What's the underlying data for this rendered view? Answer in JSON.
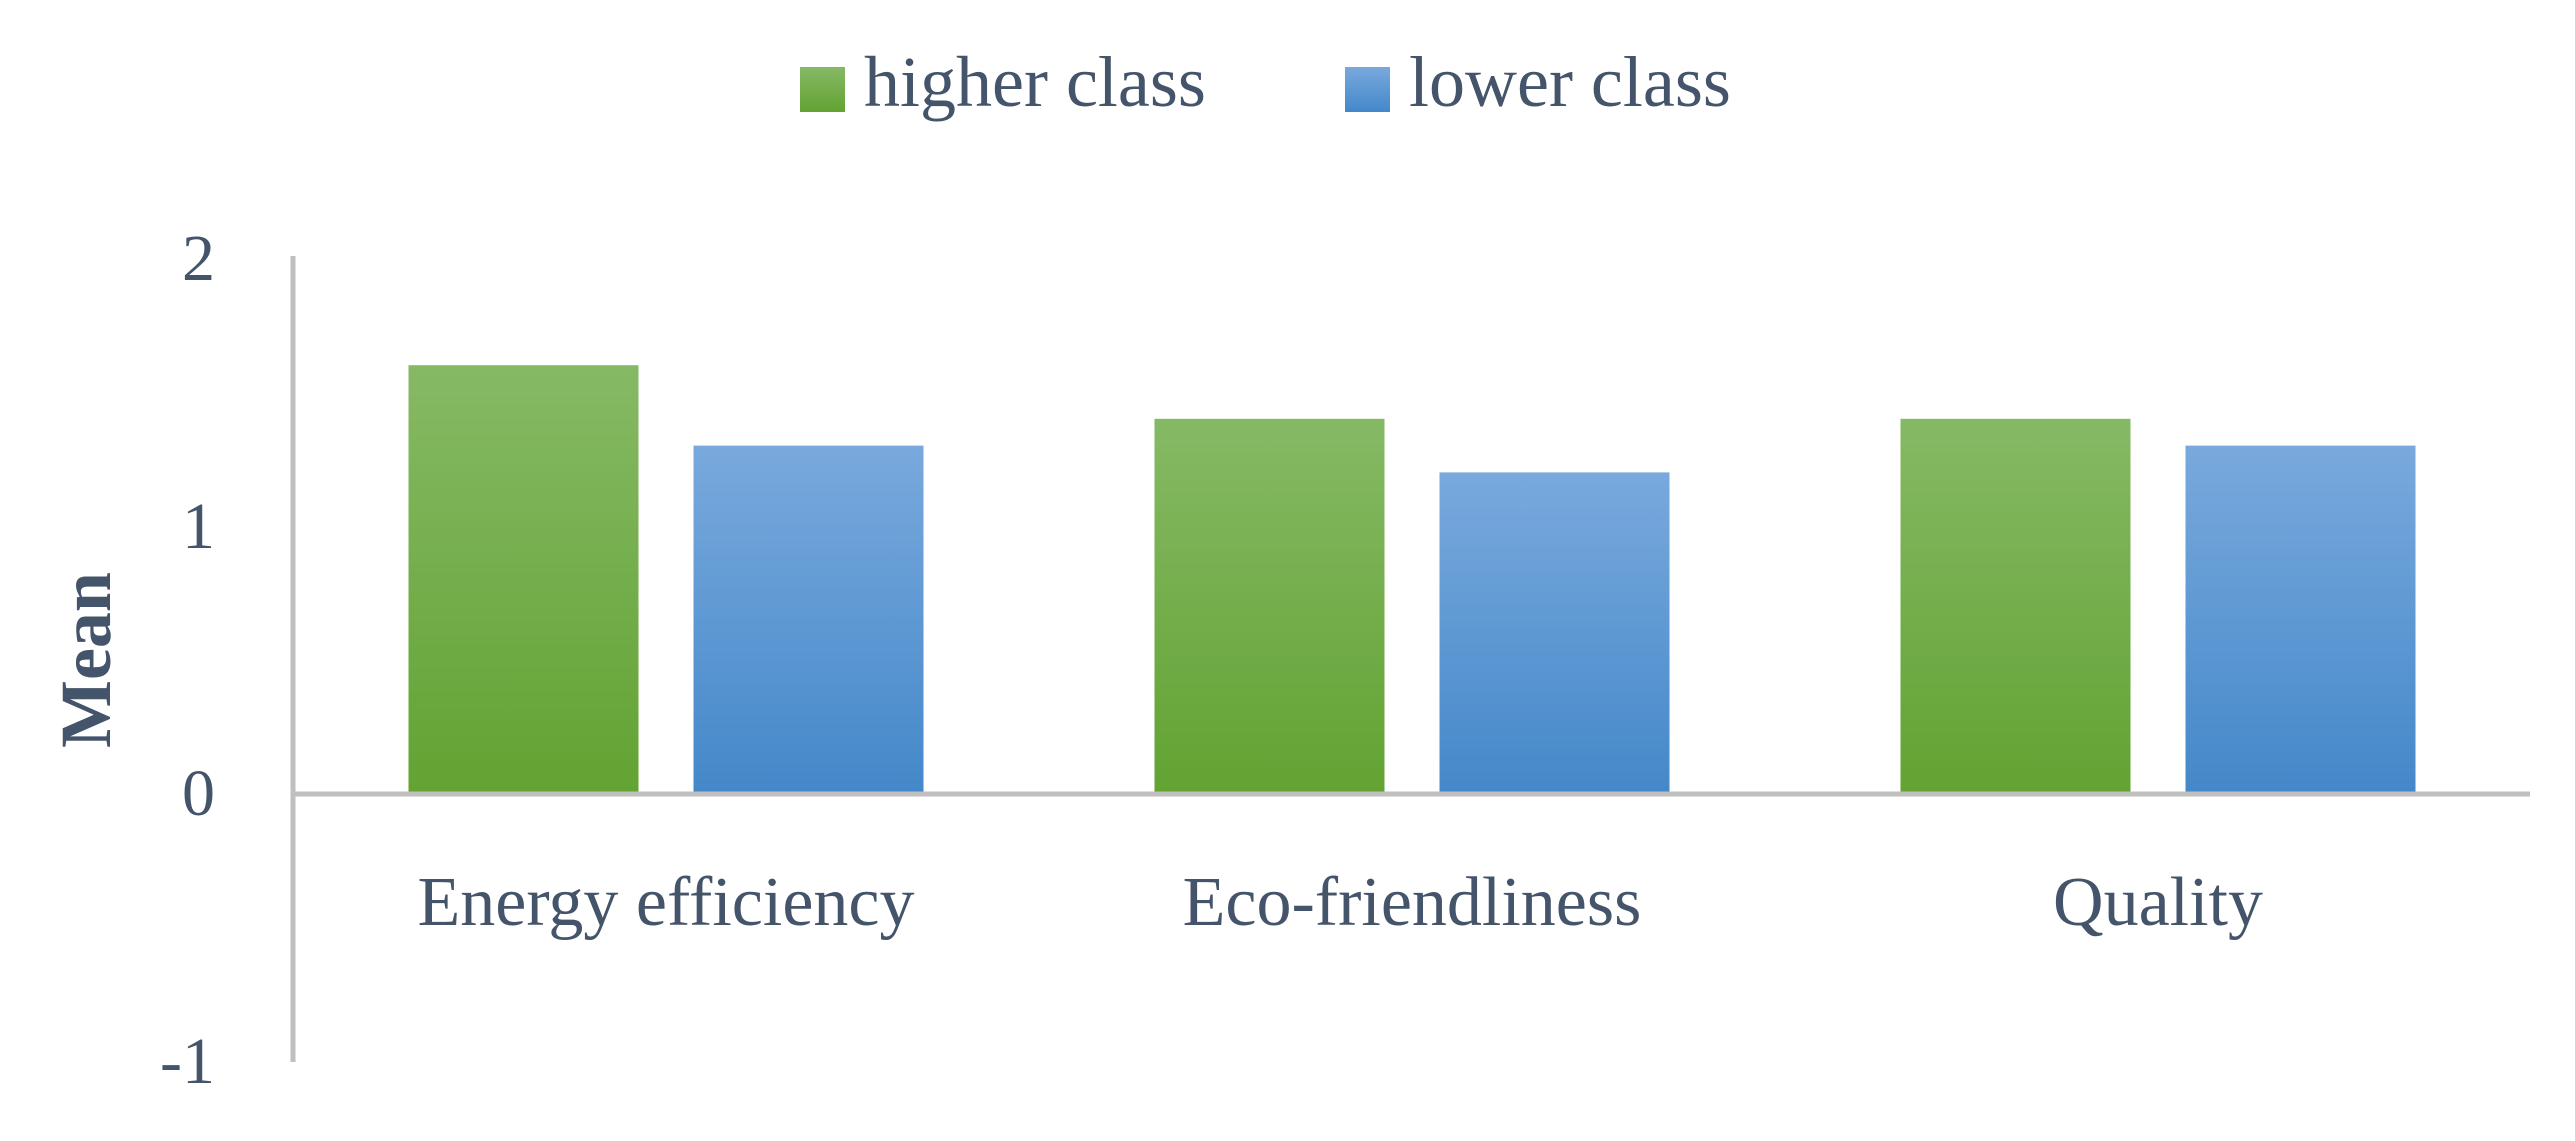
{
  "chart_data": {
    "type": "bar",
    "categories": [
      "Energy efficiency",
      "Eco-friendliness",
      "Quality"
    ],
    "series": [
      {
        "name": "higher class",
        "values": [
          1.6,
          1.4,
          1.4
        ],
        "color_top": "#86b965",
        "color_bottom": "#62a332"
      },
      {
        "name": "lower class",
        "values": [
          1.3,
          1.2,
          1.3
        ],
        "color_top": "#79a9dd",
        "color_bottom": "#4488c9"
      }
    ],
    "xlabel": "",
    "ylabel": "Mean",
    "ylim": [
      -1,
      2
    ],
    "yticks": [
      "2",
      "1",
      "0",
      "-1"
    ],
    "ytick_values": [
      2,
      1,
      0,
      -1
    ],
    "grid": false,
    "legend_position": "top-center",
    "axis_color": "#bfbfbf",
    "text_color": "#44546a"
  }
}
